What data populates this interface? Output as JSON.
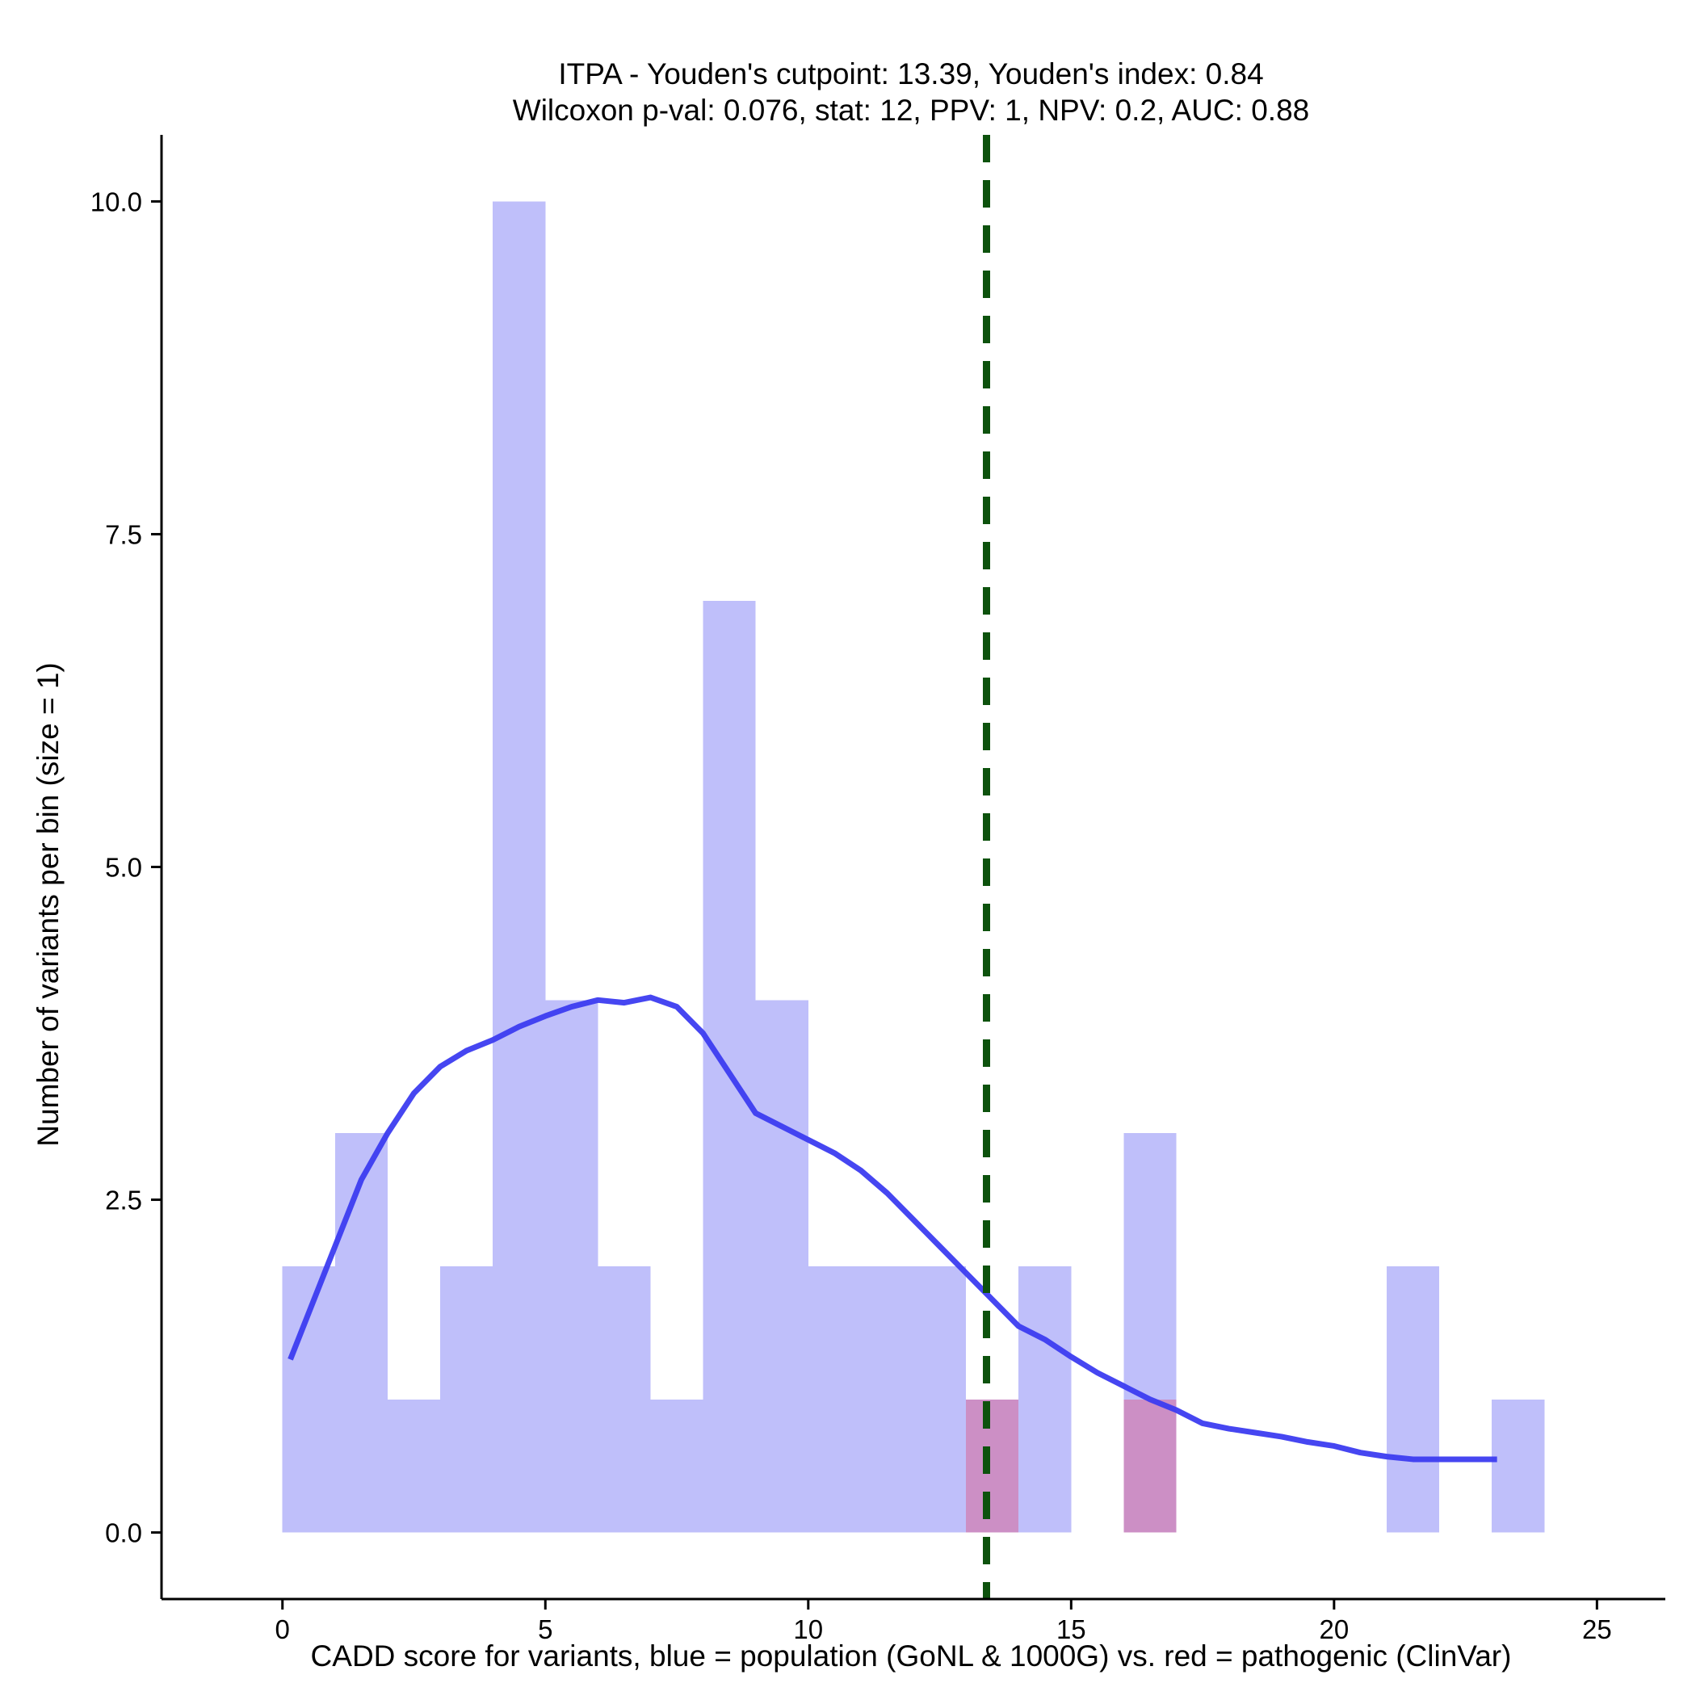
{
  "chart_data": {
    "type": "bar",
    "title_line1": "ITPA - Youden's cutpoint: 13.39, Youden's index: 0.84",
    "title_line2": "Wilcoxon p-val: 0.076, stat: 12, PPV: 1, NPV: 0.2, AUC: 0.88",
    "xlabel": "CADD score for variants, blue = population (GoNL & 1000G) vs. red = pathogenic (ClinVar)",
    "ylabel": "Number of variants per bin (size = 1)",
    "xlim": [
      -2.3,
      26.3
    ],
    "ylim": [
      -0.5,
      10.5
    ],
    "x_ticks": [
      0,
      5,
      10,
      15,
      20,
      25
    ],
    "x_tick_labels": [
      "0",
      "5",
      "10",
      "15",
      "20",
      "25"
    ],
    "y_ticks": [
      0,
      2.5,
      5,
      7.5,
      10
    ],
    "y_tick_labels": [
      "0.0",
      "2.5",
      "5.0",
      "7.5",
      "10.0"
    ],
    "bin_width": 1,
    "series": [
      {
        "name": "population (GoNL & 1000G)",
        "color": "#bfbffa",
        "bins": [
          {
            "start": 0,
            "count": 2
          },
          {
            "start": 1,
            "count": 3
          },
          {
            "start": 2,
            "count": 1
          },
          {
            "start": 3,
            "count": 2
          },
          {
            "start": 4,
            "count": 10
          },
          {
            "start": 5,
            "count": 4
          },
          {
            "start": 6,
            "count": 2
          },
          {
            "start": 7,
            "count": 1
          },
          {
            "start": 8,
            "count": 7
          },
          {
            "start": 9,
            "count": 4
          },
          {
            "start": 10,
            "count": 2
          },
          {
            "start": 11,
            "count": 2
          },
          {
            "start": 12,
            "count": 2
          },
          {
            "start": 13,
            "count": 1
          },
          {
            "start": 14,
            "count": 2
          },
          {
            "start": 16,
            "count": 3
          },
          {
            "start": 21,
            "count": 2
          },
          {
            "start": 23,
            "count": 1
          }
        ]
      },
      {
        "name": "pathogenic (ClinVar)",
        "color": "#cc8fc5",
        "bins": [
          {
            "start": 13,
            "count": 1
          },
          {
            "start": 16,
            "count": 1
          }
        ]
      }
    ],
    "density_line": {
      "name": "population density",
      "color": "#3c3cf0",
      "points": [
        [
          0.15,
          1.3
        ],
        [
          0.5,
          1.65
        ],
        [
          1.0,
          2.15
        ],
        [
          1.5,
          2.65
        ],
        [
          2.0,
          3.0
        ],
        [
          2.5,
          3.3
        ],
        [
          3.0,
          3.5
        ],
        [
          3.5,
          3.62
        ],
        [
          4.0,
          3.7
        ],
        [
          4.5,
          3.8
        ],
        [
          5.0,
          3.88
        ],
        [
          5.5,
          3.95
        ],
        [
          6.0,
          4.0
        ],
        [
          6.5,
          3.98
        ],
        [
          7.0,
          4.02
        ],
        [
          7.5,
          3.95
        ],
        [
          8.0,
          3.75
        ],
        [
          8.5,
          3.45
        ],
        [
          9.0,
          3.15
        ],
        [
          9.5,
          3.05
        ],
        [
          10.0,
          2.95
        ],
        [
          10.5,
          2.85
        ],
        [
          11.0,
          2.72
        ],
        [
          11.5,
          2.55
        ],
        [
          12.0,
          2.35
        ],
        [
          12.5,
          2.15
        ],
        [
          13.0,
          1.95
        ],
        [
          13.5,
          1.75
        ],
        [
          14.0,
          1.55
        ],
        [
          14.5,
          1.45
        ],
        [
          15.0,
          1.32
        ],
        [
          15.5,
          1.2
        ],
        [
          16.0,
          1.1
        ],
        [
          16.5,
          1.0
        ],
        [
          17.0,
          0.92
        ],
        [
          17.5,
          0.82
        ],
        [
          18.0,
          0.78
        ],
        [
          18.5,
          0.75
        ],
        [
          19.0,
          0.72
        ],
        [
          19.5,
          0.68
        ],
        [
          20.0,
          0.65
        ],
        [
          20.5,
          0.6
        ],
        [
          21.0,
          0.57
        ],
        [
          21.5,
          0.55
        ],
        [
          22.0,
          0.55
        ],
        [
          22.5,
          0.55
        ],
        [
          23.1,
          0.55
        ]
      ]
    },
    "cutpoint_line": {
      "x": 13.39,
      "color": "#0d520d",
      "style": "dashed"
    }
  }
}
